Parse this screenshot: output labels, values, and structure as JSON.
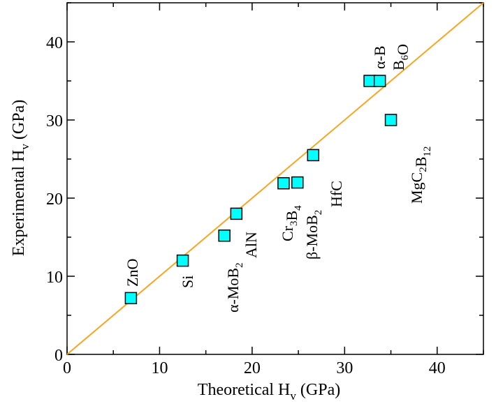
{
  "chart_data": {
    "type": "scatter",
    "xlabel": "Theoretical H",
    "xlabel_sub": "v",
    "xlabel_unit": " (GPa)",
    "ylabel": "Experimental H",
    "ylabel_sub": "v",
    "ylabel_unit": " (GPa)",
    "xlim": [
      0,
      45
    ],
    "ylim": [
      0,
      45
    ],
    "xticks": [
      0,
      10,
      20,
      30,
      40
    ],
    "yticks": [
      0,
      10,
      20,
      30,
      40
    ],
    "grid": false,
    "legend": "none",
    "reference_line": {
      "x": [
        0,
        45
      ],
      "y": [
        0,
        45
      ],
      "color": "#f5a623"
    },
    "marker": {
      "shape": "square",
      "fill": "#00ffff",
      "stroke": "#000000"
    },
    "points": [
      {
        "label": "ZnO",
        "label_parts": [
          [
            "ZnO",
            ""
          ]
        ],
        "x": 6.9,
        "y": 7.2
      },
      {
        "label": "Si",
        "label_parts": [
          [
            "Si",
            ""
          ]
        ],
        "x": 12.5,
        "y": 12.0
      },
      {
        "label": "α-MoB2",
        "label_parts": [
          [
            "α-MoB",
            "2"
          ]
        ],
        "x": 17.0,
        "y": 15.2
      },
      {
        "label": "AlN",
        "label_parts": [
          [
            "AlN",
            ""
          ]
        ],
        "x": 18.3,
        "y": 18.0
      },
      {
        "label": "Cr3B4",
        "label_parts": [
          [
            "Cr",
            "3"
          ],
          [
            "B",
            "4"
          ]
        ],
        "x": 23.4,
        "y": 21.9
      },
      {
        "label": "β-MoB2",
        "label_parts": [
          [
            "β-MoB",
            "2"
          ]
        ],
        "x": 24.9,
        "y": 22.0
      },
      {
        "label": "HfC",
        "label_parts": [
          [
            "HfC",
            ""
          ]
        ],
        "x": 26.6,
        "y": 25.5
      },
      {
        "label": "α-B",
        "label_parts": [
          [
            "α-B",
            ""
          ]
        ],
        "x": 32.7,
        "y": 35.0
      },
      {
        "label": "B6O",
        "label_parts": [
          [
            "B",
            "6"
          ],
          [
            "O",
            ""
          ]
        ],
        "x": 33.8,
        "y": 35.0
      },
      {
        "label": "MgC2B12",
        "label_parts": [
          [
            "MgC",
            "2"
          ],
          [
            "B",
            "12"
          ]
        ],
        "x": 35.0,
        "y": 30.0
      }
    ]
  }
}
